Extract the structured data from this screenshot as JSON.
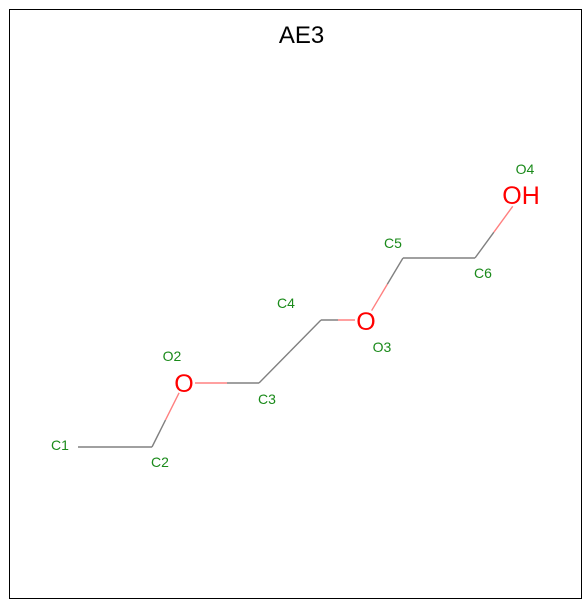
{
  "title": "AE3",
  "colors": {
    "carbon_label": "#1a8a1a",
    "oxygen": "#ff0000",
    "bond": "#808080",
    "bond_oxygen_side": "#ff8080"
  },
  "atoms": [
    {
      "id": "C1",
      "label": "C1",
      "element": "C"
    },
    {
      "id": "C2",
      "label": "C2",
      "element": "C"
    },
    {
      "id": "O2",
      "label": "O2",
      "element": "O",
      "symbol": "O"
    },
    {
      "id": "C3",
      "label": "C3",
      "element": "C"
    },
    {
      "id": "C4",
      "label": "C4",
      "element": "C"
    },
    {
      "id": "O3",
      "label": "O3",
      "element": "O",
      "symbol": "O"
    },
    {
      "id": "C5",
      "label": "C5",
      "element": "C"
    },
    {
      "id": "C6",
      "label": "C6",
      "element": "C"
    },
    {
      "id": "O4",
      "label": "O4",
      "element": "O",
      "symbol": "OH"
    }
  ],
  "bonds": [
    [
      "C1",
      "C2"
    ],
    [
      "C2",
      "O2"
    ],
    [
      "O2",
      "C3"
    ],
    [
      "C3",
      "C4"
    ],
    [
      "C4",
      "O3"
    ],
    [
      "O3",
      "C5"
    ],
    [
      "C5",
      "C6"
    ],
    [
      "C6",
      "O4"
    ]
  ]
}
